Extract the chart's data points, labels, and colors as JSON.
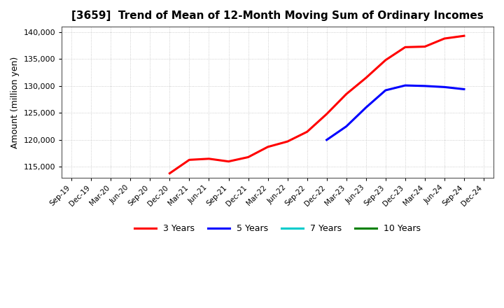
{
  "title": "[3659]  Trend of Mean of 12-Month Moving Sum of Ordinary Incomes",
  "ylabel": "Amount (million yen)",
  "ylim": [
    113000,
    141000
  ],
  "yticks": [
    115000,
    120000,
    125000,
    130000,
    135000,
    140000
  ],
  "background_color": "#ffffff",
  "grid_color": "#b0b0b0",
  "series": {
    "3years": {
      "color": "#ff0000",
      "label": "3 Years",
      "x_indices": [
        5,
        6,
        7,
        8,
        9,
        10,
        11,
        12,
        13,
        14,
        15,
        16,
        17,
        18,
        19,
        20
      ],
      "values": [
        113800,
        116300,
        116500,
        116000,
        116800,
        118700,
        119700,
        121500,
        124800,
        128500,
        131500,
        134800,
        137200,
        137300,
        138800,
        139300
      ]
    },
    "5years": {
      "color": "#0000ff",
      "label": "5 Years",
      "x_indices": [
        13,
        14,
        15,
        16,
        17,
        18,
        19,
        20
      ],
      "values": [
        120000,
        122500,
        126000,
        129200,
        130100,
        130000,
        129800,
        129400
      ]
    },
    "7years": {
      "color": "#00cccc",
      "label": "7 Years",
      "x_indices": [],
      "values": []
    },
    "10years": {
      "color": "#008000",
      "label": "10 Years",
      "x_indices": [],
      "values": []
    }
  },
  "xtick_labels": [
    "Sep-19",
    "Dec-19",
    "Mar-20",
    "Jun-20",
    "Sep-20",
    "Dec-20",
    "Mar-21",
    "Jun-21",
    "Sep-21",
    "Dec-21",
    "Mar-22",
    "Jun-22",
    "Sep-22",
    "Dec-22",
    "Mar-23",
    "Jun-23",
    "Sep-23",
    "Dec-23",
    "Mar-24",
    "Jun-24",
    "Sep-24",
    "Dec-24"
  ],
  "legend_labels": [
    "3 Years",
    "5 Years",
    "7 Years",
    "10 Years"
  ],
  "legend_colors": [
    "#ff0000",
    "#0000ff",
    "#00cccc",
    "#008000"
  ]
}
